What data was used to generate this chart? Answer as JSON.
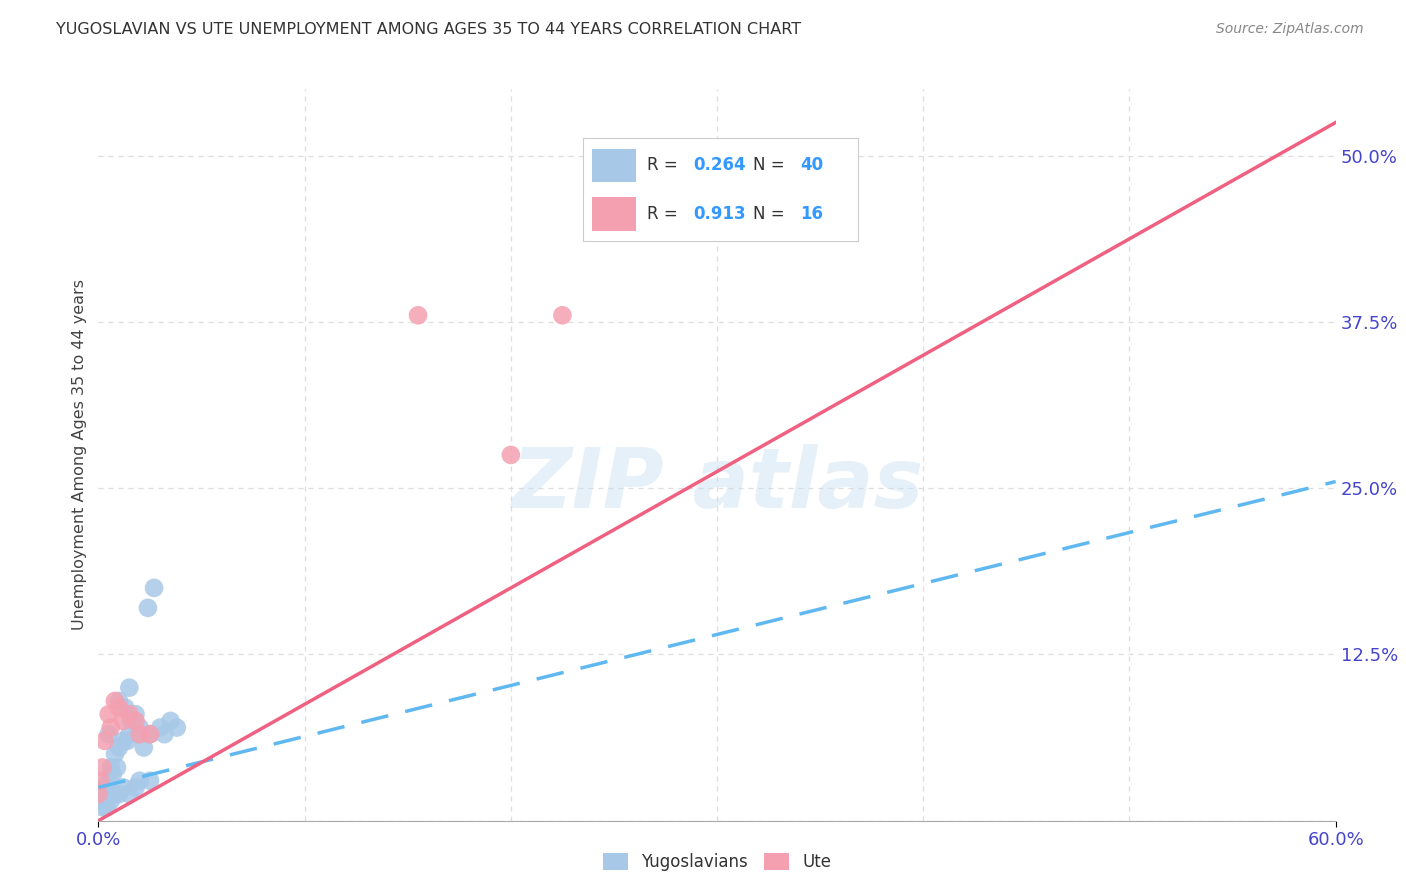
{
  "title": "YUGOSLAVIAN VS UTE UNEMPLOYMENT AMONG AGES 35 TO 44 YEARS CORRELATION CHART",
  "source": "Source: ZipAtlas.com",
  "ylabel": "Unemployment Among Ages 35 to 44 years",
  "legend_blue_label": "Yugoslavians",
  "legend_pink_label": "Ute",
  "legend_blue_r": "0.264",
  "legend_blue_n": "40",
  "legend_pink_r": "0.913",
  "legend_pink_n": "16",
  "blue_color": "#a8c8e8",
  "pink_color": "#f4a0b0",
  "blue_line_color": "#60b8f0",
  "pink_line_color": "#f06080",
  "xlim": [
    0.0,
    0.6
  ],
  "ylim": [
    0.0,
    0.55
  ],
  "yticks": [
    0.0,
    0.125,
    0.25,
    0.375,
    0.5
  ],
  "ytick_labels": [
    "",
    "12.5%",
    "25.0%",
    "37.5%",
    "50.0%"
  ],
  "xtick_labels": [
    "0.0%",
    "60.0%"
  ],
  "background_color": "#ffffff",
  "grid_color": "#dddddd",
  "blue_scatter_x": [
    0.0,
    0.001,
    0.002,
    0.003,
    0.004,
    0.005,
    0.005,
    0.006,
    0.007,
    0.008,
    0.009,
    0.01,
    0.01,
    0.012,
    0.013,
    0.014,
    0.015,
    0.015,
    0.016,
    0.018,
    0.019,
    0.02,
    0.022,
    0.024,
    0.025,
    0.027,
    0.03,
    0.032,
    0.035,
    0.038,
    0.002,
    0.004,
    0.006,
    0.008,
    0.01,
    0.012,
    0.015,
    0.018,
    0.02,
    0.025
  ],
  "blue_scatter_y": [
    0.02,
    0.015,
    0.02,
    0.025,
    0.025,
    0.03,
    0.065,
    0.04,
    0.035,
    0.05,
    0.04,
    0.055,
    0.09,
    0.06,
    0.085,
    0.06,
    0.065,
    0.1,
    0.075,
    0.08,
    0.065,
    0.07,
    0.055,
    0.16,
    0.065,
    0.175,
    0.07,
    0.065,
    0.075,
    0.07,
    0.01,
    0.01,
    0.015,
    0.02,
    0.02,
    0.025,
    0.02,
    0.025,
    0.03,
    0.03
  ],
  "pink_scatter_x": [
    0.0,
    0.001,
    0.002,
    0.003,
    0.005,
    0.006,
    0.008,
    0.01,
    0.012,
    0.015,
    0.018,
    0.02,
    0.025,
    0.155,
    0.2,
    0.225
  ],
  "pink_scatter_y": [
    0.02,
    0.03,
    0.04,
    0.06,
    0.08,
    0.07,
    0.09,
    0.085,
    0.075,
    0.08,
    0.075,
    0.065,
    0.065,
    0.38,
    0.275,
    0.38
  ],
  "blue_line_x0": 0.0,
  "blue_line_y0": 0.025,
  "blue_line_x1": 0.6,
  "blue_line_y1": 0.255,
  "pink_line_x0": 0.0,
  "pink_line_y0": 0.0,
  "pink_line_x1": 0.6,
  "pink_line_y1": 0.525
}
